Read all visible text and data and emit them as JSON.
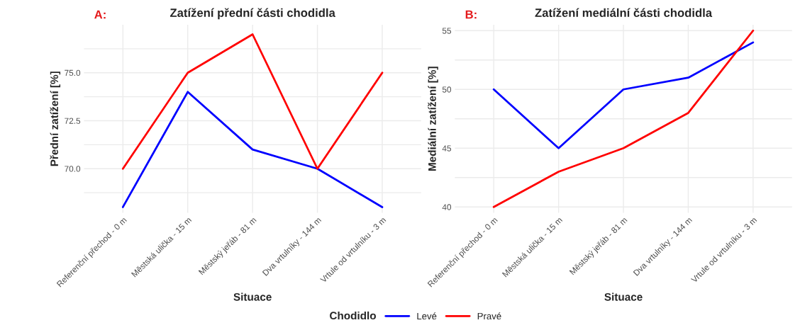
{
  "chart_data": [
    {
      "type": "line",
      "title": "Zatížení přední části chodidla",
      "annotations": [
        "A:"
      ],
      "xlabel": "Situace",
      "ylabel": "Přední zatížení [%]",
      "legend_title": "Chodidlo",
      "legend": "bottom",
      "grid": true,
      "categories": [
        "Referenční přechod - 0 m",
        "Městská ulička - 15 m",
        "Městský jeřáb - 81 m",
        "Dva vrtulníky - 144 m",
        "Vrtule od vrtulníku - 3 m"
      ],
      "series": [
        {
          "name": "Levé",
          "color": "#0000ff",
          "values": [
            68,
            74,
            71,
            70,
            68
          ]
        },
        {
          "name": "Pravé",
          "color": "#ff0000",
          "values": [
            70,
            75,
            77,
            70,
            75
          ]
        }
      ],
      "ylim": [
        67.7,
        77.5
      ],
      "yticks": [
        {
          "value": 68.75,
          "label": null
        },
        {
          "value": 70,
          "label": "70.0"
        },
        {
          "value": 71.25,
          "label": null
        },
        {
          "value": 72.5,
          "label": "72.5"
        },
        {
          "value": 73.75,
          "label": null
        },
        {
          "value": 75,
          "label": "75.0"
        },
        {
          "value": 76.25,
          "label": null
        }
      ]
    },
    {
      "type": "line",
      "title": "Zatížení mediální části chodidla",
      "annotations": [
        "B:"
      ],
      "xlabel": "Situace",
      "ylabel": "Mediální zatížení [%]",
      "grid": true,
      "categories": [
        "Referenční přechod - 0 m",
        "Městská ulička - 15 m",
        "Městský jeřáb - 81 m",
        "Dva vrtulníky - 144 m",
        "Vrtule od vrtulníku - 3 m"
      ],
      "series": [
        {
          "color": "#0000ff",
          "values": [
            50,
            45,
            50,
            51,
            54
          ]
        },
        {
          "color": "#ff0000",
          "values": [
            40,
            43,
            45,
            48,
            55
          ]
        }
      ],
      "ylim": [
        39.5,
        55.5
      ],
      "yticks": [
        40,
        {
          "value": 42.5,
          "label": null
        },
        45,
        {
          "value": 47.5,
          "label": null
        },
        50,
        {
          "value": 52.5,
          "label": null
        },
        55
      ]
    }
  ]
}
